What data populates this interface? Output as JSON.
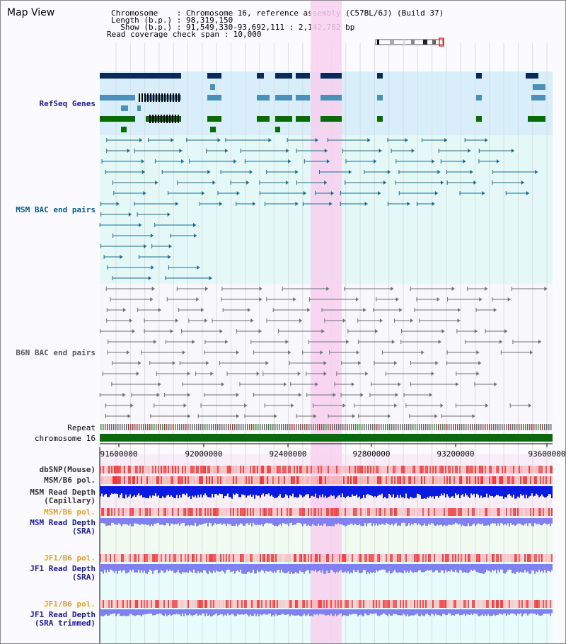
{
  "title": "Map View",
  "info": {
    "chromosome": "Chromosome    : Chromosome 16, reference assembly (C57BL/6J) (Build 37)",
    "length": "Length (b.p.) : 98,319,150",
    "show": "  Show (b.p.) : 91,549,330-93,692,111 : 2,142,782 bp",
    "coverage": "Read coverage check span : 10,000"
  },
  "tracks": {
    "refseq": "RefSeq Genes",
    "msm_bac": "MSM BAC end pairs",
    "b6n_bac": "B6N BAC end pairs",
    "repeat": "Repeat",
    "chromosome": "chromosome 16",
    "dbsnp": "dbSNP(Mouse)",
    "msm_pol1": "MSM/B6 pol.",
    "msm_depth1_a": "MSM Read Depth",
    "msm_depth1_b": "(Capillary)",
    "msm_pol2": "MSM/B6 pol.",
    "msm_depth2_a": "MSM Read Depth",
    "msm_depth2_b": "(SRA)",
    "jf1_pol1": "JF1/B6 pol.",
    "jf1_depth1_a": "JF1 Read Depth",
    "jf1_depth1_b": "(SRA)",
    "jf1_pol2": "JF1/B6 pol.",
    "jf1_depth2_a": "JF1 Read Depth",
    "jf1_depth2_b": "(SRA trimmed)"
  },
  "axis": {
    "ticks": [
      "91600000",
      "92000000",
      "92400000",
      "92800000",
      "93200000",
      "93600000"
    ]
  },
  "colors": {
    "refseq_label": "#1a1aa0",
    "msm_label": "#0a5a8a",
    "b6n_label": "#5a5a5a",
    "pol_orange": "#e6a020",
    "depth_blue": "#1a1a9a",
    "highlight": "#f8d0f0"
  }
}
